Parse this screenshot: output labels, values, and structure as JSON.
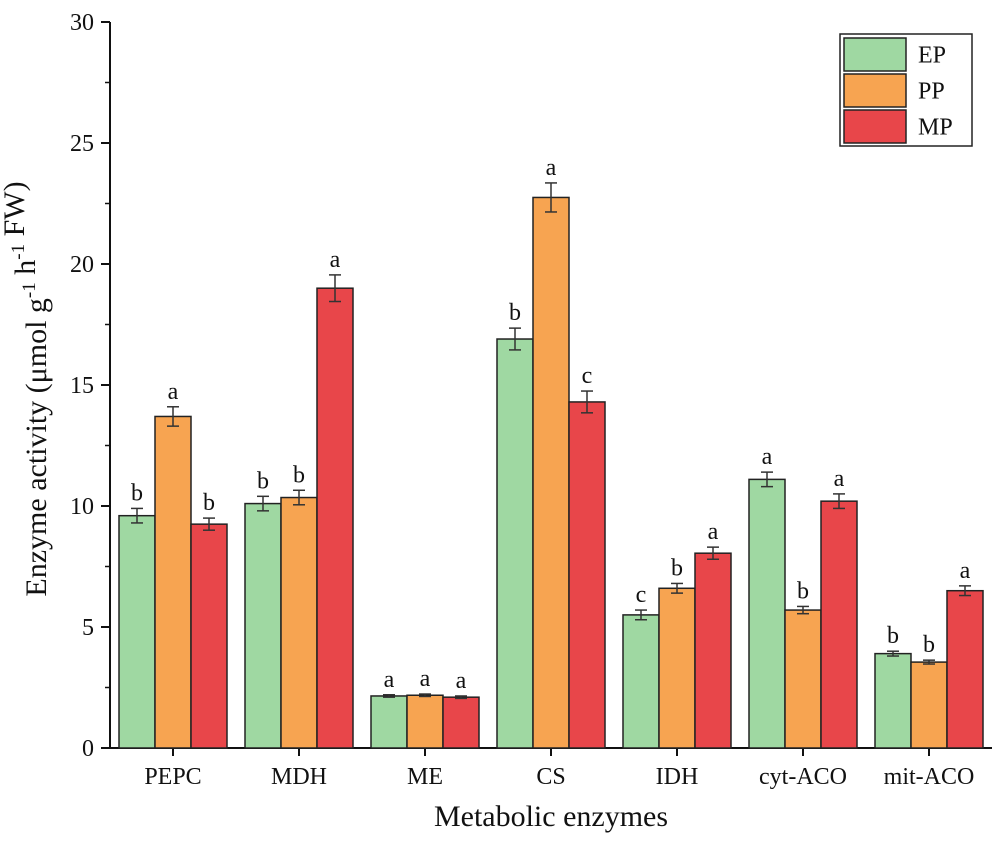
{
  "chart_data": {
    "type": "bar",
    "title": "",
    "xlabel": "Metabolic enzymes",
    "ylabel": "Enzyme activity (μmol g",
    "ylabel_parts": [
      {
        "text": "Enzyme activity (μmol g",
        "sup": false
      },
      {
        "text": "-1",
        "sup": true
      },
      {
        "text": " h",
        "sup": false
      },
      {
        "text": "-1",
        "sup": true
      },
      {
        "text": " FW)",
        "sup": false
      }
    ],
    "ylim": [
      0,
      30
    ],
    "yticks": [
      0,
      5,
      10,
      15,
      20,
      25,
      30
    ],
    "categories": [
      "PEPC",
      "MDH",
      "ME",
      "CS",
      "IDH",
      "cyt-ACO",
      "mit-ACO"
    ],
    "series": [
      {
        "name": "EP",
        "color": "#9fd8a2",
        "values": [
          9.6,
          10.1,
          2.15,
          16.9,
          5.5,
          11.1,
          3.9
        ],
        "errors": [
          0.3,
          0.3,
          0.05,
          0.45,
          0.2,
          0.3,
          0.1
        ],
        "letters": [
          "b",
          "b",
          "a",
          "b",
          "c",
          "a",
          "b"
        ]
      },
      {
        "name": "PP",
        "color": "#f7a451",
        "values": [
          13.7,
          10.35,
          2.18,
          22.75,
          6.6,
          5.7,
          3.55
        ],
        "errors": [
          0.4,
          0.3,
          0.05,
          0.6,
          0.2,
          0.15,
          0.08
        ],
        "letters": [
          "a",
          "b",
          "a",
          "a",
          "b",
          "b",
          "b"
        ]
      },
      {
        "name": "MP",
        "color": "#e8464a",
        "values": [
          9.25,
          19.0,
          2.1,
          14.3,
          8.05,
          10.2,
          6.5
        ],
        "errors": [
          0.25,
          0.55,
          0.05,
          0.45,
          0.25,
          0.3,
          0.2
        ],
        "letters": [
          "b",
          "a",
          "a",
          "c",
          "a",
          "a",
          "a"
        ]
      }
    ],
    "legend_position": "top-right",
    "grid": false
  }
}
